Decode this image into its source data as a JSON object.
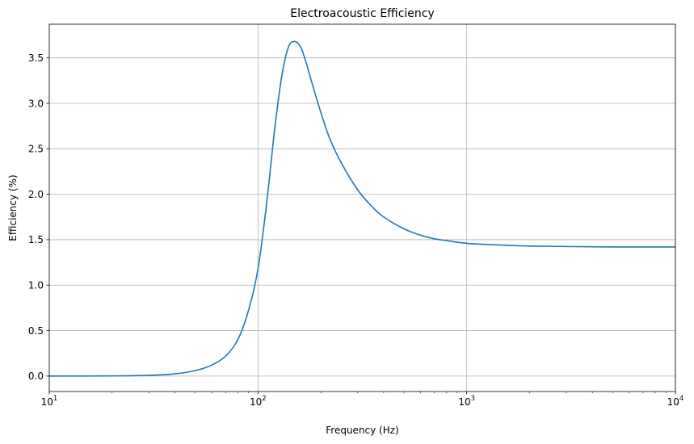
{
  "chart_data": {
    "type": "line",
    "title": "Electroacoustic Efficiency",
    "xlabel": "Frequency (Hz)",
    "ylabel": "Efficiency (%)",
    "x_scale": "log",
    "xlim": [
      10,
      10000
    ],
    "ylim": [
      -0.17,
      3.87
    ],
    "grid": true,
    "x_ticks": [
      {
        "value": 10,
        "base": "10",
        "exp": "1"
      },
      {
        "value": 100,
        "base": "10",
        "exp": "2"
      },
      {
        "value": 1000,
        "base": "10",
        "exp": "3"
      },
      {
        "value": 10000,
        "base": "10",
        "exp": "4"
      }
    ],
    "y_ticks": [
      {
        "value": 0.0,
        "label": "0.0"
      },
      {
        "value": 0.5,
        "label": "0.5"
      },
      {
        "value": 1.0,
        "label": "1.0"
      },
      {
        "value": 1.5,
        "label": "1.5"
      },
      {
        "value": 2.0,
        "label": "2.0"
      },
      {
        "value": 2.5,
        "label": "2.5"
      },
      {
        "value": 3.0,
        "label": "3.0"
      },
      {
        "value": 3.5,
        "label": "3.5"
      }
    ],
    "series": [
      {
        "color": "#1f77b4",
        "points": [
          [
            10,
            0.0
          ],
          [
            20,
            0.002
          ],
          [
            30,
            0.008
          ],
          [
            40,
            0.025
          ],
          [
            50,
            0.06
          ],
          [
            60,
            0.12
          ],
          [
            70,
            0.22
          ],
          [
            80,
            0.4
          ],
          [
            90,
            0.72
          ],
          [
            100,
            1.18
          ],
          [
            110,
            1.9
          ],
          [
            120,
            2.7
          ],
          [
            130,
            3.3
          ],
          [
            140,
            3.62
          ],
          [
            150,
            3.68
          ],
          [
            160,
            3.62
          ],
          [
            170,
            3.45
          ],
          [
            180,
            3.25
          ],
          [
            200,
            2.9
          ],
          [
            220,
            2.62
          ],
          [
            250,
            2.35
          ],
          [
            300,
            2.05
          ],
          [
            350,
            1.87
          ],
          [
            400,
            1.75
          ],
          [
            500,
            1.62
          ],
          [
            600,
            1.55
          ],
          [
            700,
            1.51
          ],
          [
            800,
            1.49
          ],
          [
            1000,
            1.46
          ],
          [
            1500,
            1.44
          ],
          [
            2000,
            1.43
          ],
          [
            3000,
            1.425
          ],
          [
            5000,
            1.42
          ],
          [
            10000,
            1.42
          ]
        ]
      }
    ]
  }
}
